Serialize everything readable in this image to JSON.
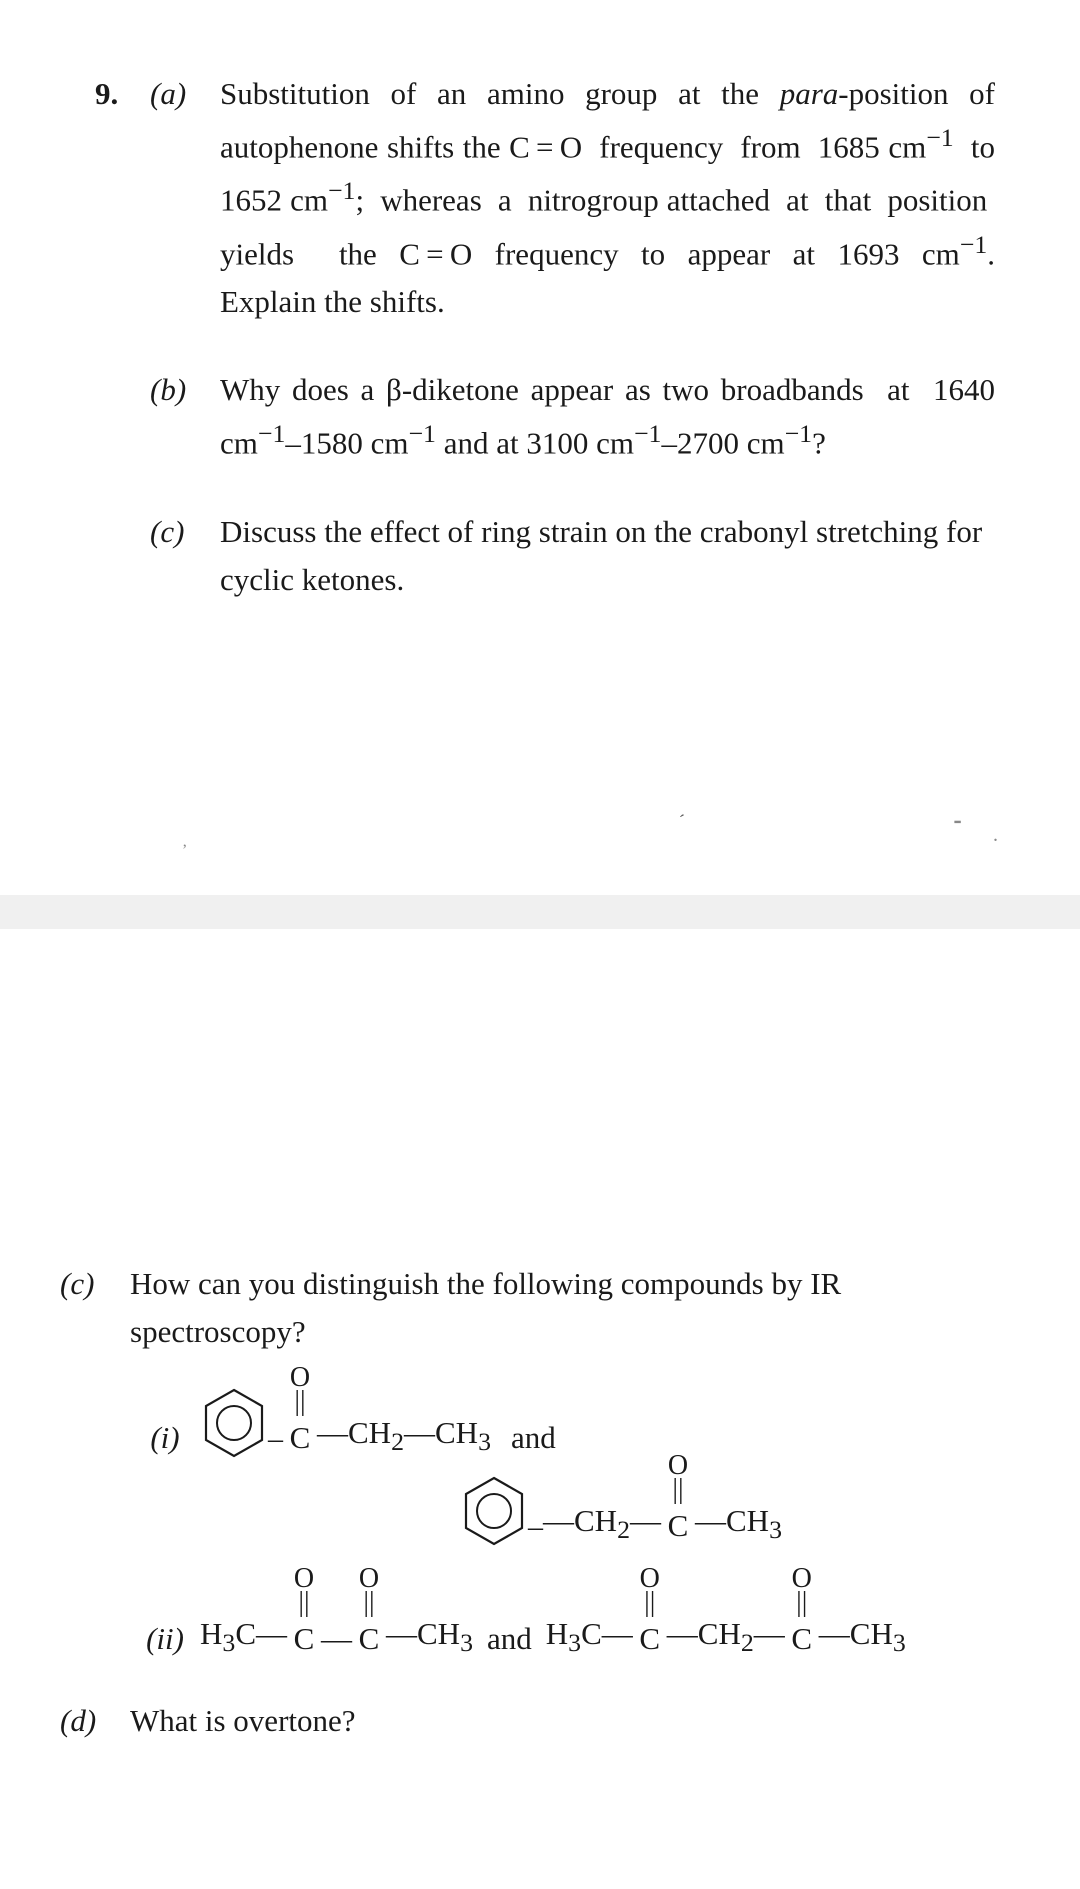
{
  "q9": {
    "number": "9.",
    "a": {
      "label": "(a)",
      "text": "Substitution of an amino group at the <i>para</i>-position of autophenone shifts the C&#8201;=&#8201;O&nbsp; frequency&nbsp; from&nbsp; 1685 cm<sup>&#8722;1</sup>&nbsp; to 1652 cm<sup>&#8722;1</sup>;&nbsp; whereas&nbsp; a&nbsp; nitrogroup attached&nbsp; at&nbsp; that&nbsp; position&nbsp; yields&nbsp; the C&#8201;=&#8201;O frequency to appear at 1693 cm<sup>&#8722;1</sup>. Explain&nbsp;the&nbsp;shifts."
    },
    "b": {
      "label": "(b)",
      "text": "Why does a &beta;-diketone appear as two broadbands&nbsp; at&nbsp; 1640 cm<sup>&#8722;1</sup>&#8211;1580 cm<sup>&#8722;1</sup> and at 3100 cm<sup>&#8722;1</sup>&#8211;2700 cm<sup>&#8722;1</sup>?"
    },
    "c": {
      "label": "(c)",
      "text": "Discuss the effect of ring strain on the crabonyl stretching for cyclic ketones."
    }
  },
  "lower": {
    "c": {
      "label": "(c)",
      "text": "How can you distinguish the following compounds by IR spectroscopy?"
    },
    "i": {
      "label": "(i)",
      "chain1": "&#8212;CH<sub>2</sub>&#8212;CH<sub>3</sub>",
      "and": "and",
      "chain2a": "&#8212;CH<sub>2</sub>&#8212;",
      "chain2b": "&#8212;CH<sub>3</sub>"
    },
    "ii": {
      "label": "(ii)",
      "pre": "H<sub>3</sub>C&#8212;",
      "mid1": "&#8212;",
      "post1": "&#8212;CH<sub>3</sub>",
      "and": "and",
      "pre2": "H<sub>3</sub>C&#8212;",
      "mid2": "&#8212;CH<sub>2</sub>&#8212;",
      "post2": "&#8212;CH<sub>3</sub>"
    },
    "d": {
      "label": "(d)",
      "text": "What is overtone?"
    }
  },
  "carb": {
    "o": "O",
    "dbl": "||",
    "c": "C"
  },
  "colors": {
    "text": "#1a1a1a",
    "bg": "#ffffff",
    "band": "#f0f0f0"
  }
}
